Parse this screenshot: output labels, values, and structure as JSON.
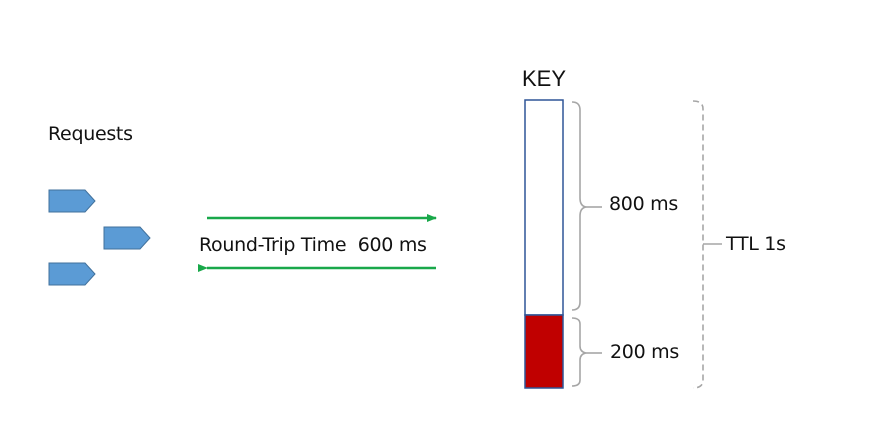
{
  "requests": {
    "label": "Requests",
    "count": 3,
    "color": "#5b9bd5",
    "border_color": "#41719c"
  },
  "round_trip": {
    "label": "Round-Trip Time  600 ms",
    "arrow_color": "#19a84a"
  },
  "key": {
    "label": "KEY",
    "border_color": "#2f5597",
    "elapsed_color": "#c00000",
    "remaining_label": "800 ms",
    "elapsed_label": "200 ms",
    "remaining_ms": 800,
    "elapsed_ms": 200
  },
  "ttl": {
    "label": "TTL 1s"
  },
  "bracket_color": "#a6a6a6"
}
